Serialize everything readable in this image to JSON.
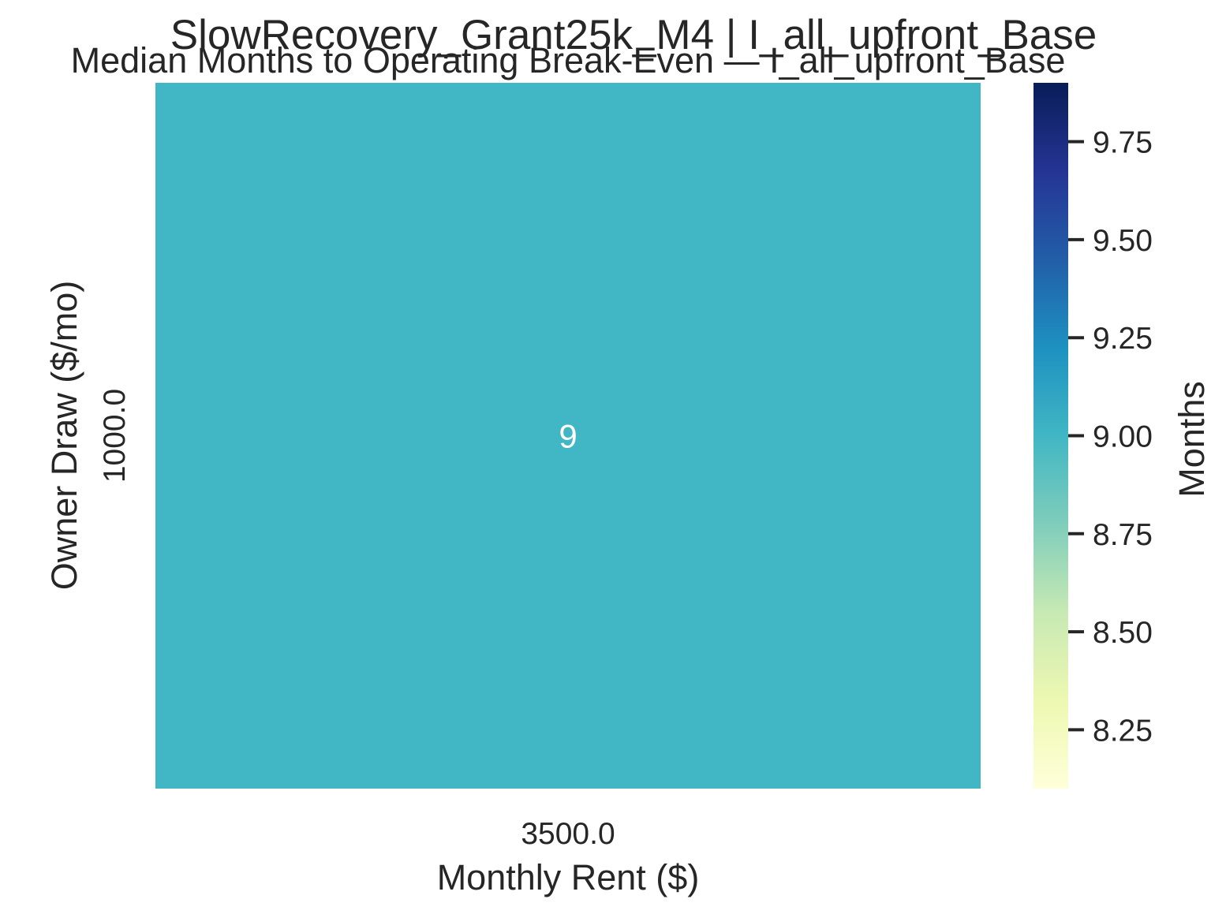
{
  "chart_data": {
    "type": "heatmap",
    "title": "SlowRecovery_Grant25k_M4 | I_all_upfront_Base",
    "subtitle": "Median Months to Operating Break-Even — I_all_upfront_Base",
    "xlabel": "Monthly Rent ($)",
    "ylabel": "Owner Draw ($/mo)",
    "x_categories": [
      "3500.0"
    ],
    "y_categories": [
      "1000.0"
    ],
    "values": [
      [
        9
      ]
    ],
    "annotations": [
      [
        "9"
      ]
    ],
    "colorbar": {
      "label": "Months",
      "colormap": "YlGnBu",
      "range": [
        8.1,
        9.9
      ],
      "ticks": [
        8.25,
        8.5,
        8.75,
        9.0,
        9.25,
        9.5,
        9.75
      ],
      "tick_labels": [
        "8.25",
        "8.50",
        "8.75",
        "9.00",
        "9.25",
        "9.50",
        "9.75"
      ]
    },
    "grid": false,
    "colors": {
      "cell": "#41b6c4",
      "annotation_text": "#ffffff",
      "text": "#262626"
    }
  }
}
